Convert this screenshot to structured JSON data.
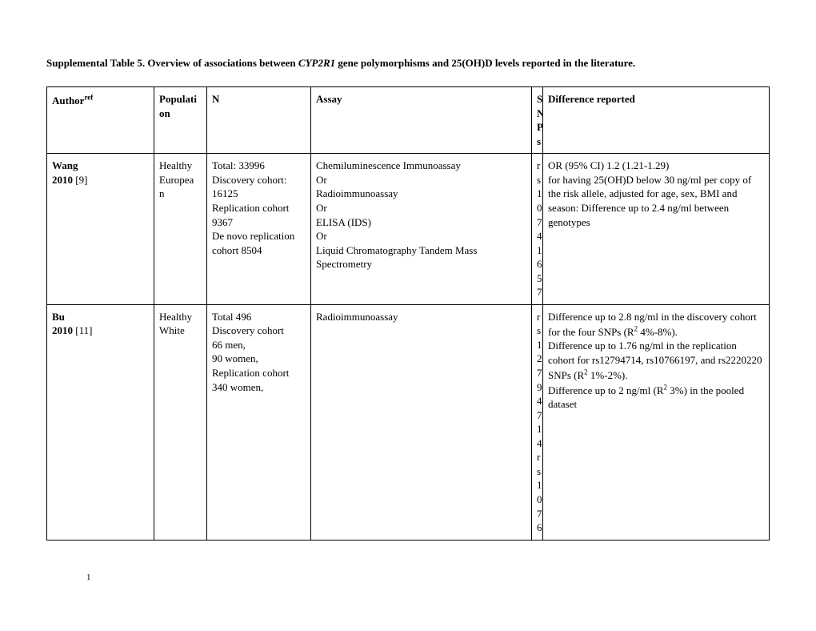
{
  "title_prefix": "Supplemental Table 5. Overview of associations between ",
  "title_gene": "CYP2R1",
  "title_suffix": " gene polymorphisms and 25(OH)D levels reported in the literature.",
  "headers": {
    "author": "Author",
    "author_sup": "ref",
    "population": "Populati\non",
    "n": "N",
    "assay": "Assay",
    "snps": "S\nN\nP\ns",
    "difference": "Difference reported"
  },
  "rows": [
    {
      "author_name": "Wang",
      "author_year": "2010",
      "author_ref": " [9]",
      "population": "Healthy\nEuropea\nn",
      "n": "Total: 33996\nDiscovery cohort: 16125\nReplication cohort 9367\nDe novo replication cohort  8504",
      "assay": "Chemiluminescence Immunoassay\nOr\nRadioimmunoassay\nOr\nELISA (IDS)\nOr\nLiquid Chromatography Tandem Mass Spectrometry",
      "snps": "r\ns\n1\n0\n7\n4\n1\n6\n5\n7",
      "difference": "OR (95% CI) 1.2 (1.21-1.29)\nfor having 25(OH)D below 30 ng/ml per copy of the risk allele, adjusted for age, sex, BMI and season: Difference up to 2.4 ng/ml between genotypes"
    },
    {
      "author_name": "Bu",
      "author_year": "2010",
      "author_ref": " [11]",
      "population": "Healthy\nWhite",
      "n": "Total 496\nDiscovery cohort\n66 men,\n90 women,\nReplication cohort 340 women,",
      "assay": "Radioimmunoassay",
      "snps": "r\ns\n1\n2\n7\n9\n4\n7\n1\n4\nr\ns\n1\n0\n7\n6",
      "difference_html": "Difference up to 2.8 ng/ml in the discovery cohort for the four SNPs (R<sup>2</sup> 4%-8%).\nDifference up to 1.76 ng/ml in the replication cohort for rs12794714, rs10766197, and rs2220220 SNPs (R<sup>2</sup> 1%-2%).\nDifference up to 2 ng/ml (R<sup>2</sup> 3%) in the pooled dataset"
    }
  ],
  "page_number": "1"
}
